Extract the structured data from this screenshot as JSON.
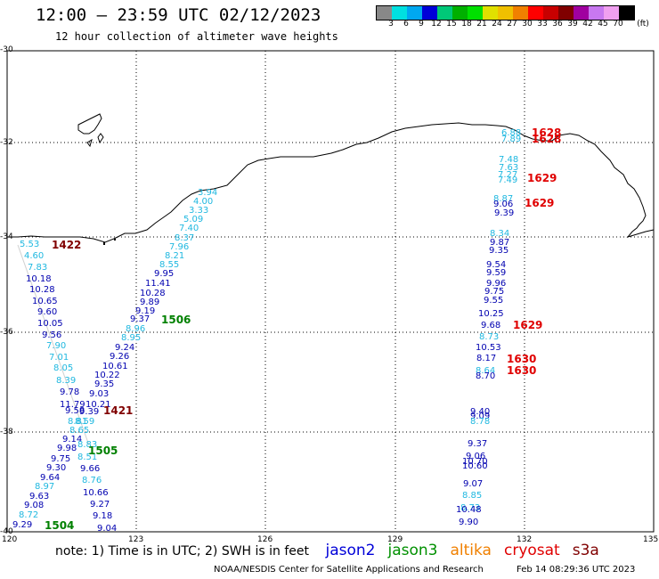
{
  "header": {
    "title": "12:00 — 23:59 UTC 02/12/2023",
    "subtitle": "12 hour collection of altimeter wave heights"
  },
  "legend": {
    "colors": [
      "#888888",
      "#00e0e0",
      "#00a8f0",
      "#0000d8",
      "#00c878",
      "#00b000",
      "#00e000",
      "#e0e000",
      "#f0c000",
      "#f08000",
      "#ff0000",
      "#c80000",
      "#800000",
      "#a000a0",
      "#c878f0",
      "#f0a0f0",
      "#000000"
    ],
    "ticks": [
      "3",
      "6",
      "9",
      "12",
      "15",
      "18",
      "21",
      "24",
      "27",
      "30",
      "33",
      "36",
      "39",
      "42",
      "45",
      "70"
    ],
    "unit": "(ft)"
  },
  "axes": {
    "lat_labels": [
      "-30",
      "-32",
      "-34",
      "-36",
      "-38",
      "-40"
    ],
    "lon_labels": [
      "120",
      "123",
      "126",
      "129",
      "132",
      "135"
    ]
  },
  "footer": {
    "note": "note: 1) Time is in UTC; 2) SWH is in feet",
    "satellites": [
      {
        "name": "jason2",
        "color": "#0000d8"
      },
      {
        "name": "jason3",
        "color": "#009000"
      },
      {
        "name": "altika",
        "color": "#f08000"
      },
      {
        "name": "cryosat",
        "color": "#e00000"
      },
      {
        "name": "s3a",
        "color": "#800000"
      }
    ],
    "credit": "NOAA/NESDIS Center for Satellite Applications and Research",
    "generated": "Feb 14 08:29:36 UTC 2023"
  },
  "colors": {
    "light": "#20b8e0",
    "dark": "#0000b0",
    "cryosat": "#e00000",
    "jason3": "#008000",
    "s3a": "#800000"
  },
  "wave_heights": [
    {
      "v": "5.53",
      "c": "light"
    },
    {
      "v": "4.60",
      "c": "light"
    },
    {
      "v": "7.83",
      "c": "light"
    },
    {
      "v": "10.18",
      "c": "dark"
    },
    {
      "v": "10.28",
      "c": "dark"
    },
    {
      "v": "10.65",
      "c": "dark"
    },
    {
      "v": "9.60",
      "c": "dark"
    },
    {
      "v": "10.05",
      "c": "dark"
    },
    {
      "v": "9.56",
      "c": "dark"
    },
    {
      "v": "7.90",
      "c": "light"
    },
    {
      "v": "7.01",
      "c": "light"
    },
    {
      "v": "8.05",
      "c": "light"
    },
    {
      "v": "8.39",
      "c": "light"
    },
    {
      "v": "9.78",
      "c": "dark"
    },
    {
      "v": "11.79",
      "c": "dark"
    },
    {
      "v": "9.58",
      "c": "dark"
    },
    {
      "v": "8.81",
      "c": "light"
    },
    {
      "v": "9.14",
      "c": "dark"
    },
    {
      "v": "9.98",
      "c": "dark"
    },
    {
      "v": "9.75",
      "c": "dark"
    },
    {
      "v": "9.30",
      "c": "dark"
    },
    {
      "v": "9.64",
      "c": "dark"
    },
    {
      "v": "8.97",
      "c": "light"
    },
    {
      "v": "9.63",
      "c": "dark"
    },
    {
      "v": "9.08",
      "c": "dark"
    },
    {
      "v": "8.72",
      "c": "light"
    },
    {
      "v": "9.29",
      "c": "dark"
    },
    {
      "v": "3.94",
      "c": "light"
    },
    {
      "v": "4.00",
      "c": "light"
    },
    {
      "v": "3.33",
      "c": "light"
    },
    {
      "v": "5.09",
      "c": "light"
    },
    {
      "v": "7.40",
      "c": "light"
    },
    {
      "v": "8.37",
      "c": "light"
    },
    {
      "v": "7.96",
      "c": "light"
    },
    {
      "v": "8.21",
      "c": "light"
    },
    {
      "v": "8.55",
      "c": "light"
    },
    {
      "v": "9.95",
      "c": "dark"
    },
    {
      "v": "11.41",
      "c": "dark"
    },
    {
      "v": "10.28",
      "c": "dark"
    },
    {
      "v": "9.89",
      "c": "dark"
    },
    {
      "v": "9.19",
      "c": "dark"
    },
    {
      "v": "9.37",
      "c": "dark"
    },
    {
      "v": "8.96",
      "c": "light"
    },
    {
      "v": "8.95",
      "c": "light"
    },
    {
      "v": "9.24",
      "c": "dark"
    },
    {
      "v": "9.26",
      "c": "dark"
    },
    {
      "v": "10.61",
      "c": "dark"
    },
    {
      "v": "10.22",
      "c": "dark"
    },
    {
      "v": "9.35",
      "c": "dark"
    },
    {
      "v": "9.03",
      "c": "dark"
    },
    {
      "v": "10.21",
      "c": "dark"
    },
    {
      "v": "9.39",
      "c": "dark"
    },
    {
      "v": "8.59",
      "c": "light"
    },
    {
      "v": "8.65",
      "c": "light"
    },
    {
      "v": "8.83",
      "c": "light"
    },
    {
      "v": "8.51",
      "c": "light"
    },
    {
      "v": "9.66",
      "c": "dark"
    },
    {
      "v": "8.76",
      "c": "light"
    },
    {
      "v": "10.66",
      "c": "dark"
    },
    {
      "v": "9.27",
      "c": "dark"
    },
    {
      "v": "9.18",
      "c": "dark"
    },
    {
      "v": "9.04",
      "c": "dark"
    },
    {
      "v": "6.88",
      "c": "light"
    },
    {
      "v": "7.89",
      "c": "light"
    },
    {
      "v": "7.48",
      "c": "light"
    },
    {
      "v": "7.63",
      "c": "light"
    },
    {
      "v": "7.27",
      "c": "light"
    },
    {
      "v": "7.49",
      "c": "light"
    },
    {
      "v": "8.87",
      "c": "light"
    },
    {
      "v": "9.06",
      "c": "dark"
    },
    {
      "v": "9.39",
      "c": "dark"
    },
    {
      "v": "8.34",
      "c": "light"
    },
    {
      "v": "9.87",
      "c": "dark"
    },
    {
      "v": "9.35",
      "c": "dark"
    },
    {
      "v": "9.54",
      "c": "dark"
    },
    {
      "v": "9.59",
      "c": "dark"
    },
    {
      "v": "9.96",
      "c": "dark"
    },
    {
      "v": "9.75",
      "c": "dark"
    },
    {
      "v": "9.55",
      "c": "dark"
    },
    {
      "v": "10.25",
      "c": "dark"
    },
    {
      "v": "9.68",
      "c": "dark"
    },
    {
      "v": "8.73",
      "c": "light"
    },
    {
      "v": "10.53",
      "c": "dark"
    },
    {
      "v": "8.17",
      "c": "dark"
    },
    {
      "v": "8.64",
      "c": "light"
    },
    {
      "v": "8.70",
      "c": "dark"
    },
    {
      "v": "9.40",
      "c": "dark"
    },
    {
      "v": "9.09",
      "c": "dark"
    },
    {
      "v": "8.78",
      "c": "light"
    },
    {
      "v": "9.37",
      "c": "dark"
    },
    {
      "v": "9.06",
      "c": "dark"
    },
    {
      "v": "10.70",
      "c": "dark"
    },
    {
      "v": "10.60",
      "c": "dark"
    },
    {
      "v": "9.07",
      "c": "dark"
    },
    {
      "v": "8.85",
      "c": "light"
    },
    {
      "v": "8.73",
      "c": "light"
    },
    {
      "v": "10.48",
      "c": "dark"
    },
    {
      "v": "9.90",
      "c": "dark"
    }
  ],
  "pass_times": [
    {
      "t": "1422",
      "c": "s3a"
    },
    {
      "t": "1421",
      "c": "s3a"
    },
    {
      "t": "1506",
      "c": "jason3"
    },
    {
      "t": "1505",
      "c": "jason3"
    },
    {
      "t": "1504",
      "c": "jason3"
    },
    {
      "t": "1628",
      "c": "cryosat"
    },
    {
      "t": "1628",
      "c": "cryosat"
    },
    {
      "t": "1629",
      "c": "cryosat"
    },
    {
      "t": "1629",
      "c": "cryosat"
    },
    {
      "t": "1629",
      "c": "cryosat"
    },
    {
      "t": "1630",
      "c": "cryosat"
    },
    {
      "t": "1630",
      "c": "cryosat"
    }
  ]
}
